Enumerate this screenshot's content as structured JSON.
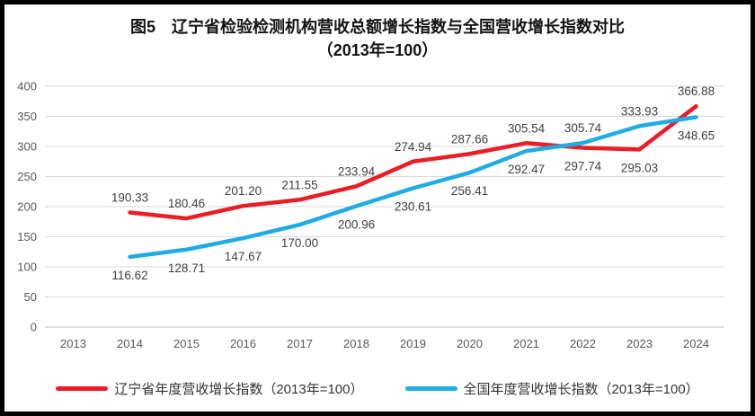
{
  "title": {
    "line1": "图5　辽宁省检验检测机构营收总额增长指数与全国营收增长指数对比",
    "line2": "（2013年=100）"
  },
  "chart_data": {
    "type": "line",
    "title": "图5 辽宁省检验检测机构营收总额增长指数与全国营收增长指数对比（2013年=100）",
    "categories": [
      "2013",
      "2014",
      "2015",
      "2016",
      "2017",
      "2018",
      "2019",
      "2020",
      "2021",
      "2022",
      "2023",
      "2024"
    ],
    "series": [
      {
        "name": "辽宁省年度营收增长指数（2013年=100）",
        "color": "#EC1C24",
        "values": [
          null,
          190.33,
          180.46,
          201.2,
          211.55,
          233.94,
          274.94,
          287.66,
          305.54,
          297.74,
          295.03,
          366.88
        ]
      },
      {
        "name": "全国年度营收增长指数（2013年=100）",
        "color": "#1FACE4",
        "values": [
          null,
          116.62,
          128.71,
          147.67,
          170.0,
          200.96,
          230.61,
          256.41,
          292.47,
          305.74,
          333.93,
          348.65
        ]
      }
    ],
    "ylim": [
      0,
      400
    ],
    "yticks": [
      0,
      50,
      100,
      150,
      200,
      250,
      300,
      350,
      400
    ],
    "xlabel": "",
    "ylabel": "",
    "grid": true,
    "legend_position": "bottom",
    "data_labels": true,
    "label_decimals": 2
  },
  "colors": {
    "grid_line": "#D9D9D9",
    "axis_line": "#BFBFBF",
    "axis_text": "#595959",
    "data_label_text": "#404040",
    "frame_border": "#000000",
    "background": "#FFFFFF"
  }
}
